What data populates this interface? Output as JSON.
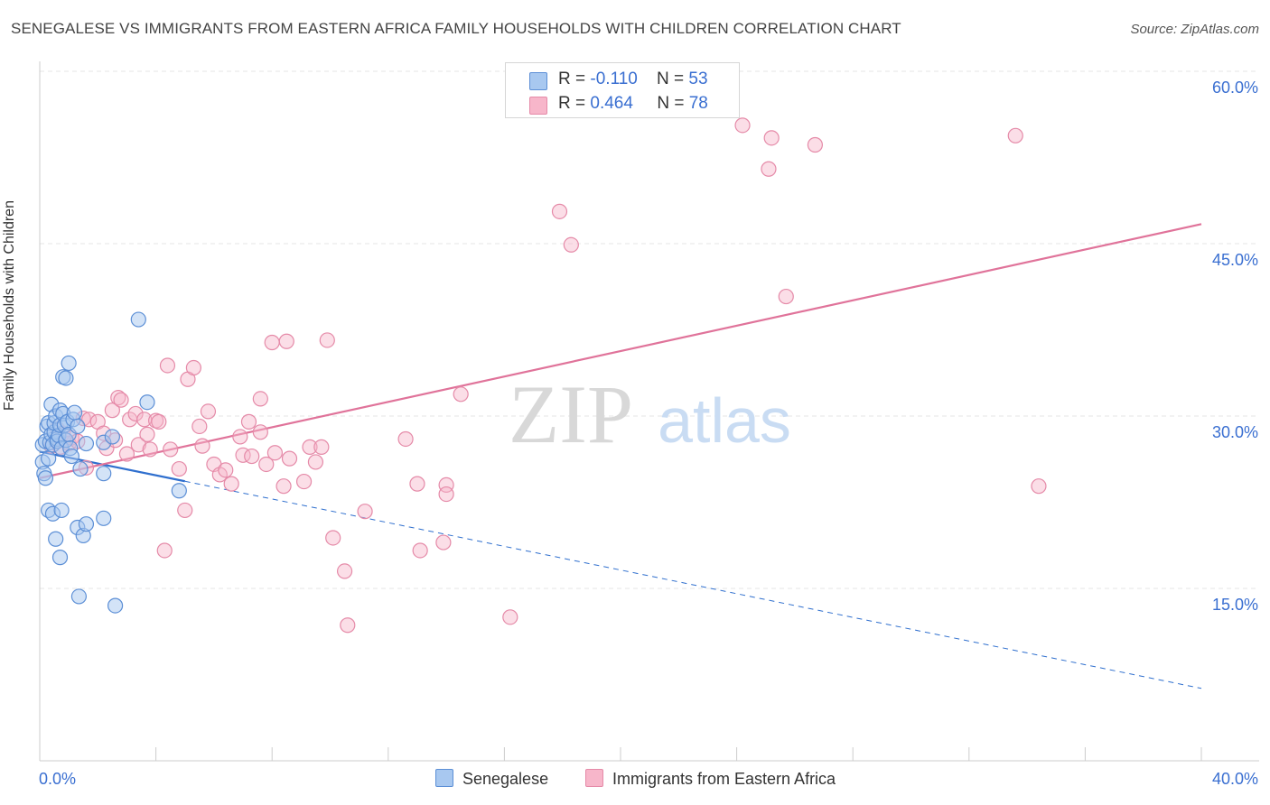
{
  "title": "SENEGALESE VS IMMIGRANTS FROM EASTERN AFRICA FAMILY HOUSEHOLDS WITH CHILDREN CORRELATION CHART",
  "source": "Source: ZipAtlas.com",
  "watermark": {
    "zip": "ZIP",
    "atlas": "atlas"
  },
  "legend_top": [
    {
      "r_label": "R =",
      "r_value": "-0.110",
      "n_label": "N =",
      "n_value": "53"
    },
    {
      "r_label": "R =",
      "r_value": "0.464",
      "n_label": "N =",
      "n_value": "78"
    }
  ],
  "colors": {
    "blue_fill": "#a8c8f0",
    "blue_stroke": "#5c8fd6",
    "blue_line": "#2f6fce",
    "pink_fill": "#f7b6ca",
    "pink_stroke": "#e58aa8",
    "pink_line": "#e0739a",
    "axis_label": "#3a6fd1",
    "grid": "#e4e4e4"
  },
  "chart_data": {
    "type": "scatter",
    "title": "SENEGALESE VS IMMIGRANTS FROM EASTERN AFRICA FAMILY HOUSEHOLDS WITH CHILDREN CORRELATION CHART",
    "xlabel": "",
    "ylabel": "Family Households with Children",
    "xlim": [
      0,
      40
    ],
    "ylim": [
      0,
      62
    ],
    "x_tick_labels": [
      "0.0%",
      "40.0%"
    ],
    "y_ticks": [
      15,
      30,
      45,
      60
    ],
    "y_tick_labels": [
      "15.0%",
      "30.0%",
      "45.0%",
      "60.0%"
    ],
    "series": [
      {
        "name": "Senegalese",
        "r": -0.11,
        "n": 53,
        "trend": {
          "x0": 0,
          "y0": 26.9,
          "x1": 40,
          "y1": 6.3,
          "solid_until_x": 5
        },
        "points": [
          [
            0.1,
            27.5
          ],
          [
            0.1,
            26
          ],
          [
            0.15,
            25
          ],
          [
            0.2,
            24.6
          ],
          [
            0.2,
            27.8
          ],
          [
            0.25,
            29.1
          ],
          [
            0.3,
            26.3
          ],
          [
            0.3,
            29.4
          ],
          [
            0.35,
            27.7
          ],
          [
            0.4,
            28.4
          ],
          [
            0.4,
            31
          ],
          [
            0.45,
            27.5
          ],
          [
            0.5,
            28.6
          ],
          [
            0.5,
            29.4
          ],
          [
            0.55,
            30
          ],
          [
            0.6,
            28
          ],
          [
            0.6,
            27.8
          ],
          [
            0.65,
            28.3
          ],
          [
            0.7,
            29.2
          ],
          [
            0.7,
            30.5
          ],
          [
            0.75,
            27.2
          ],
          [
            0.8,
            33.4
          ],
          [
            0.8,
            30.2
          ],
          [
            0.85,
            29.2
          ],
          [
            0.9,
            33.3
          ],
          [
            0.9,
            27.9
          ],
          [
            0.95,
            29.5
          ],
          [
            1,
            34.6
          ],
          [
            1,
            28.4
          ],
          [
            1.05,
            27.2
          ],
          [
            1.1,
            26.5
          ],
          [
            1.15,
            29.7
          ],
          [
            1.2,
            30.3
          ],
          [
            1.3,
            29.1
          ],
          [
            0.3,
            21.8
          ],
          [
            0.45,
            21.5
          ],
          [
            0.55,
            19.3
          ],
          [
            0.7,
            17.7
          ],
          [
            0.75,
            21.8
          ],
          [
            1.3,
            20.3
          ],
          [
            1.35,
            14.3
          ],
          [
            1.4,
            25.4
          ],
          [
            1.5,
            19.6
          ],
          [
            1.6,
            27.6
          ],
          [
            1.6,
            20.6
          ],
          [
            2.2,
            25
          ],
          [
            2.2,
            21.1
          ],
          [
            2.2,
            27.7
          ],
          [
            2.5,
            28.2
          ],
          [
            2.6,
            13.5
          ],
          [
            3.4,
            38.4
          ],
          [
            3.7,
            31.2
          ],
          [
            4.8,
            23.5
          ]
        ]
      },
      {
        "name": "Immigrants from Eastern Africa",
        "r": 0.464,
        "n": 78,
        "trend": {
          "x0": 0,
          "y0": 24.6,
          "x1": 40,
          "y1": 46.7
        },
        "points": [
          [
            0.4,
            27.4
          ],
          [
            0.6,
            28.9
          ],
          [
            0.7,
            27.3
          ],
          [
            0.8,
            28.5
          ],
          [
            1,
            27.6
          ],
          [
            1.1,
            28.1
          ],
          [
            1.3,
            27.8
          ],
          [
            1.5,
            29.8
          ],
          [
            1.6,
            25.5
          ],
          [
            1.7,
            29.7
          ],
          [
            2,
            29.5
          ],
          [
            2.2,
            28.5
          ],
          [
            2.3,
            27.2
          ],
          [
            2.5,
            30.5
          ],
          [
            2.6,
            27.9
          ],
          [
            2.7,
            31.6
          ],
          [
            2.8,
            31.4
          ],
          [
            3,
            26.7
          ],
          [
            3.1,
            29.7
          ],
          [
            3.3,
            30.2
          ],
          [
            3.4,
            27.5
          ],
          [
            3.6,
            29.7
          ],
          [
            3.7,
            28.4
          ],
          [
            3.8,
            27.1
          ],
          [
            4,
            29.6
          ],
          [
            4.1,
            29.5
          ],
          [
            4.3,
            18.3
          ],
          [
            4.4,
            34.4
          ],
          [
            4.5,
            27.1
          ],
          [
            4.8,
            25.4
          ],
          [
            5,
            21.8
          ],
          [
            5.1,
            33.2
          ],
          [
            5.3,
            34.2
          ],
          [
            5.5,
            29.1
          ],
          [
            5.6,
            27.4
          ],
          [
            5.8,
            30.4
          ],
          [
            6,
            25.8
          ],
          [
            6.2,
            24.9
          ],
          [
            6.4,
            25.3
          ],
          [
            6.6,
            24.1
          ],
          [
            6.9,
            28.2
          ],
          [
            7,
            26.6
          ],
          [
            7.2,
            29.5
          ],
          [
            7.3,
            26.5
          ],
          [
            7.6,
            28.6
          ],
          [
            7.6,
            31.5
          ],
          [
            7.8,
            25.8
          ],
          [
            8,
            36.4
          ],
          [
            8.1,
            26.8
          ],
          [
            8.4,
            23.9
          ],
          [
            8.5,
            36.5
          ],
          [
            8.6,
            26.3
          ],
          [
            9.1,
            24.3
          ],
          [
            9.3,
            27.3
          ],
          [
            9.5,
            26
          ],
          [
            9.7,
            27.3
          ],
          [
            9.9,
            36.6
          ],
          [
            10.1,
            19.4
          ],
          [
            10.5,
            16.5
          ],
          [
            10.6,
            11.8
          ],
          [
            11.2,
            21.7
          ],
          [
            12.6,
            28
          ],
          [
            13,
            24.1
          ],
          [
            13.1,
            18.3
          ],
          [
            13.9,
            19
          ],
          [
            14,
            24
          ],
          [
            14,
            23.2
          ],
          [
            14.5,
            31.9
          ],
          [
            16.2,
            12.5
          ],
          [
            17.9,
            47.8
          ],
          [
            18.3,
            44.9
          ],
          [
            24.2,
            55.3
          ],
          [
            25.1,
            51.5
          ],
          [
            25.2,
            54.2
          ],
          [
            25.7,
            40.4
          ],
          [
            26.7,
            53.6
          ],
          [
            33.6,
            54.4
          ],
          [
            34.4,
            23.9
          ]
        ]
      }
    ]
  },
  "legend_bottom": [
    "Senegalese",
    "Immigrants from Eastern Africa"
  ]
}
